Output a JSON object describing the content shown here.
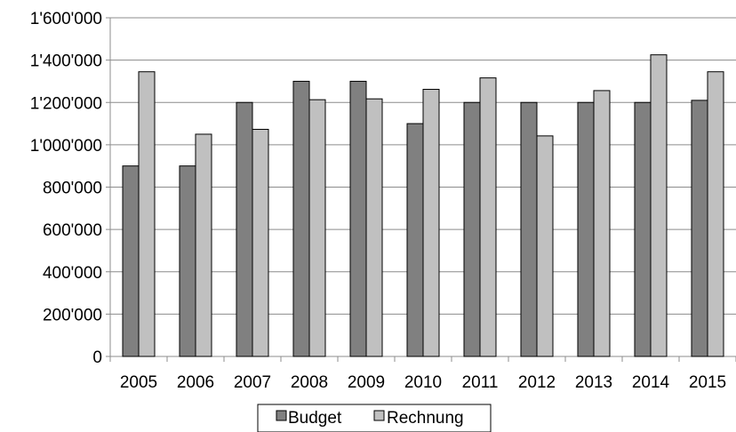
{
  "chart_data": {
    "type": "bar",
    "categories": [
      "2005",
      "2006",
      "2007",
      "2008",
      "2009",
      "2010",
      "2011",
      "2012",
      "2013",
      "2014",
      "2015"
    ],
    "series": [
      {
        "name": "Budget",
        "color": "#808080",
        "values": [
          900000,
          900000,
          1200000,
          1300000,
          1300000,
          1100000,
          1200000,
          1200000,
          1200000,
          1200000,
          1210000
        ]
      },
      {
        "name": "Rechnung",
        "color": "#c0c0c0",
        "values": [
          1345000,
          1050000,
          1073000,
          1213000,
          1217000,
          1262000,
          1316000,
          1042000,
          1256000,
          1425000,
          1345000
        ]
      }
    ],
    "ylim": [
      0,
      1600000
    ],
    "yticks": [
      0,
      200000,
      400000,
      600000,
      800000,
      1000000,
      1200000,
      1400000,
      1600000
    ],
    "ytick_labels": [
      "0",
      "200'000",
      "400'000",
      "600'000",
      "800'000",
      "1'000'000",
      "1'200'000",
      "1'400'000",
      "1'600'000"
    ],
    "grid": true,
    "legend_position": "bottom-center",
    "title": "",
    "xlabel": "",
    "ylabel": ""
  }
}
